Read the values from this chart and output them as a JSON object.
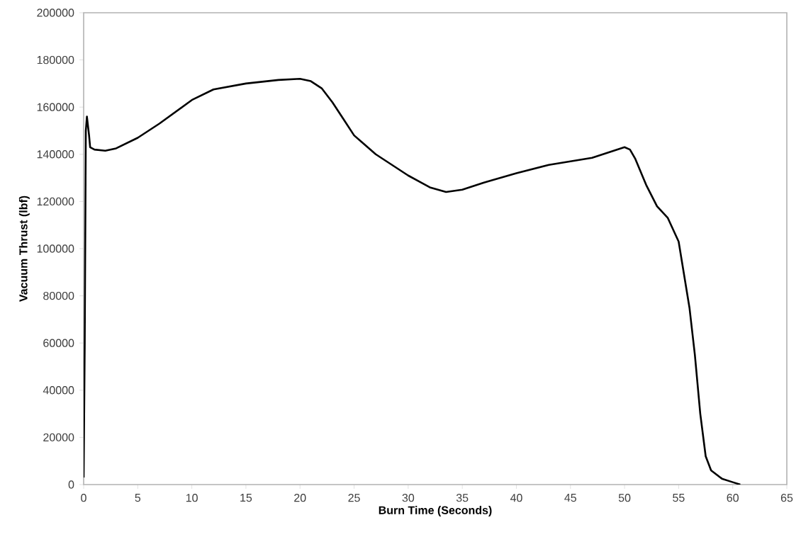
{
  "chart_data": {
    "type": "line",
    "xlabel": "Burn Time (Seconds)",
    "ylabel": "Vacuum Thrust (lbf)",
    "xlim": [
      0,
      65
    ],
    "xticks": [
      0,
      5,
      10,
      15,
      20,
      25,
      30,
      35,
      40,
      45,
      50,
      55,
      60,
      65
    ],
    "ylim": [
      0,
      200000
    ],
    "yticks": [
      0,
      20000,
      40000,
      60000,
      80000,
      100000,
      120000,
      140000,
      160000,
      180000,
      200000
    ],
    "grid": false,
    "marker": "none",
    "line_style": "solid",
    "series": [
      {
        "color": "#000000",
        "x": [
          0.0,
          0.1,
          0.2,
          0.3,
          0.5,
          0.6,
          1,
          2,
          3,
          5,
          7,
          10,
          12,
          15,
          18,
          20,
          21,
          22,
          23,
          24,
          25,
          27,
          30,
          32,
          33.5,
          35,
          37,
          40,
          43,
          45,
          47,
          49,
          50,
          50.5,
          51,
          52,
          53,
          54,
          55,
          56,
          56.5,
          57,
          57.5,
          58,
          59,
          60,
          60.7
        ],
        "values": [
          3000,
          60000,
          150000,
          156000,
          148000,
          143000,
          142000,
          141500,
          142500,
          147000,
          153000,
          163000,
          167500,
          170000,
          171500,
          172000,
          171000,
          168000,
          162000,
          155000,
          148000,
          140000,
          131000,
          126000,
          124000,
          125000,
          128000,
          132000,
          135500,
          137000,
          138500,
          141500,
          143000,
          142000,
          138000,
          127000,
          118000,
          113000,
          103000,
          75000,
          55000,
          30000,
          12000,
          6000,
          2500,
          1000,
          0
        ]
      }
    ]
  }
}
